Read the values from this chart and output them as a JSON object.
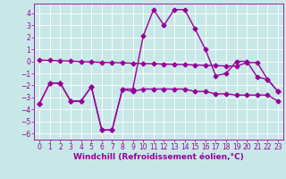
{
  "bg_color": "#c8e8e8",
  "grid_color": "#ffffff",
  "line_color": "#990099",
  "line_width": 1.0,
  "marker": "D",
  "marker_size": 2.5,
  "xlim": [
    -0.5,
    23.5
  ],
  "ylim": [
    -6.5,
    4.8
  ],
  "yticks": [
    -6,
    -5,
    -4,
    -3,
    -2,
    -1,
    0,
    1,
    2,
    3,
    4
  ],
  "xticks": [
    0,
    1,
    2,
    3,
    4,
    5,
    6,
    7,
    8,
    9,
    10,
    11,
    12,
    13,
    14,
    15,
    16,
    17,
    18,
    19,
    20,
    21,
    22,
    23
  ],
  "xlabel": "Windchill (Refroidissement éolien,°C)",
  "xlabel_fontsize": 6.5,
  "tick_fontsize": 5.5,
  "figsize": [
    3.2,
    2.0
  ],
  "dpi": 100,
  "series": [
    {
      "x": [
        0,
        1,
        2,
        3,
        4,
        5,
        6,
        7,
        8,
        9,
        10,
        11,
        12,
        13,
        14,
        15,
        16,
        17,
        18,
        19,
        20,
        21,
        22,
        23
      ],
      "y": [
        -3.5,
        -1.8,
        -1.8,
        -3.3,
        -3.3,
        -2.1,
        -5.7,
        -5.7,
        -2.3,
        -2.5,
        -2.3,
        -2.3,
        -2.3,
        -2.3,
        -2.3,
        -2.5,
        -2.5,
        -2.7,
        -2.7,
        -2.8,
        -2.8,
        -2.8,
        -2.8,
        -3.3
      ]
    },
    {
      "x": [
        0,
        1,
        2,
        3,
        4,
        5,
        6,
        7,
        8,
        9,
        10,
        11,
        12,
        13,
        14,
        15,
        16,
        17,
        18,
        19,
        20,
        21,
        22,
        23
      ],
      "y": [
        0.1,
        0.08,
        0.05,
        0.02,
        -0.02,
        -0.05,
        -0.08,
        -0.1,
        -0.12,
        -0.15,
        -0.18,
        -0.2,
        -0.22,
        -0.25,
        -0.27,
        -0.3,
        -0.33,
        -0.35,
        -0.38,
        -0.4,
        -0.1,
        -0.1,
        -1.5,
        -2.5
      ]
    },
    {
      "x": [
        0,
        1,
        2,
        3,
        4,
        5,
        6,
        7,
        8,
        9,
        10,
        11,
        12,
        13,
        14,
        15,
        16,
        17,
        18,
        19,
        20,
        21,
        22,
        23
      ],
      "y": [
        -3.5,
        -1.8,
        -1.8,
        -3.3,
        -3.3,
        -2.1,
        -5.7,
        -5.7,
        -2.3,
        -2.3,
        2.1,
        4.3,
        3.0,
        4.3,
        4.3,
        2.7,
        1.0,
        -1.2,
        -1.0,
        0.0,
        0.0,
        -1.3,
        -1.5,
        -2.5
      ]
    }
  ]
}
